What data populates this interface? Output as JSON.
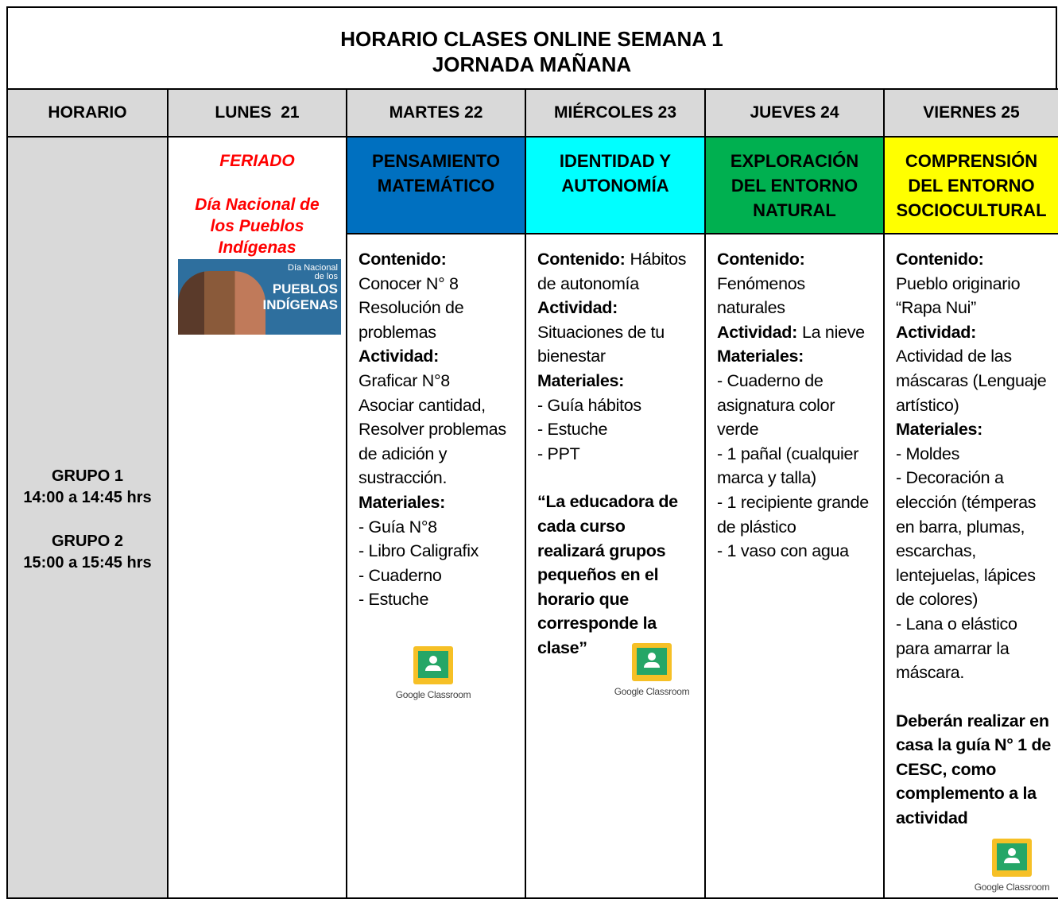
{
  "header": {
    "title_line1": "HORARIO CLASES ONLINE SEMANA 1",
    "title_line2": "JORNADA MAÑANA"
  },
  "columns": [
    "HORARIO",
    "LUNES  21",
    "MARTES 22",
    "MIÉRCOLES 23",
    "JUEVES 24",
    "VIERNES 25"
  ],
  "horario": [
    "GRUPO 1",
    "14:00 a 14:45 hrs",
    "GRUPO 2",
    "15:00 a 15:45 hrs"
  ],
  "lunes": {
    "title": "FERIADO",
    "subtitle": "Día Nacional de los Pueblos Indígenas",
    "image_text": [
      "Día Nacional",
      "de los",
      "PUEBLOS",
      "INDÍGENAS"
    ]
  },
  "classroom_label": "Google Classroom",
  "subjects": [
    {
      "name": "PENSAMIENTO MATEMÁTICO",
      "color": "#0070c0",
      "blocks": [
        {
          "label": "Contenido:",
          "lines": [
            "Conocer N° 8",
            "Resolución de problemas"
          ]
        },
        {
          "label": "Actividad:",
          "lines": [
            "Graficar N°8",
            "Asociar cantidad, Resolver problemas de adición y sustracción."
          ]
        },
        {
          "label": "Materiales:",
          "lines": [
            "- Guía N°8",
            "- Libro Caligrafix",
            "- Cuaderno",
            "- Estuche"
          ]
        }
      ]
    },
    {
      "name": "IDENTIDAD Y AUTONOMÍA",
      "color": "#00ffff",
      "blocks": [
        {
          "label": "Contenido:",
          "inline": "Hábitos de autonomía"
        },
        {
          "label": "Actividad:",
          "lines": [
            "Situaciones de tu bienestar"
          ]
        },
        {
          "label": "Materiales:",
          "lines": [
            "- Guía hábitos",
            "- Estuche",
            "- PPT"
          ]
        }
      ],
      "note": "“La educadora de cada curso realizará grupos pequeños en el horario que corresponde la clase”"
    },
    {
      "name": "EXPLORACIÓN DEL ENTORNO NATURAL",
      "color": "#00b050",
      "blocks": [
        {
          "label": "Contenido:",
          "lines": [
            "Fenómenos naturales"
          ]
        },
        {
          "label": "Actividad:",
          "inline": "La nieve"
        },
        {
          "label": "Materiales:",
          "lines": [
            "- Cuaderno de asignatura color verde",
            "- 1 pañal (cualquier marca y talla)",
            "- 1 recipiente grande de plástico",
            "- 1 vaso con agua"
          ]
        }
      ]
    },
    {
      "name": "COMPRENSIÓN DEL ENTORNO SOCIOCULTURAL",
      "color": "#ffff00",
      "blocks": [
        {
          "label": "Contenido:",
          "lines": [
            "Pueblo originario “Rapa Nui”"
          ]
        },
        {
          "label": "Actividad:",
          "lines": [
            "Actividad de las máscaras (Lenguaje artístico)"
          ]
        },
        {
          "label": "Materiales:",
          "lines": [
            "- Moldes",
            "- Decoración a elección (témperas en barra, plumas, escarchas, lentejuelas, lápices de colores)",
            "- Lana o elástico para amarrar la máscara."
          ]
        }
      ],
      "note": "Deberán realizar en casa la guía N° 1 de CESC, como complemento a la actividad"
    }
  ]
}
